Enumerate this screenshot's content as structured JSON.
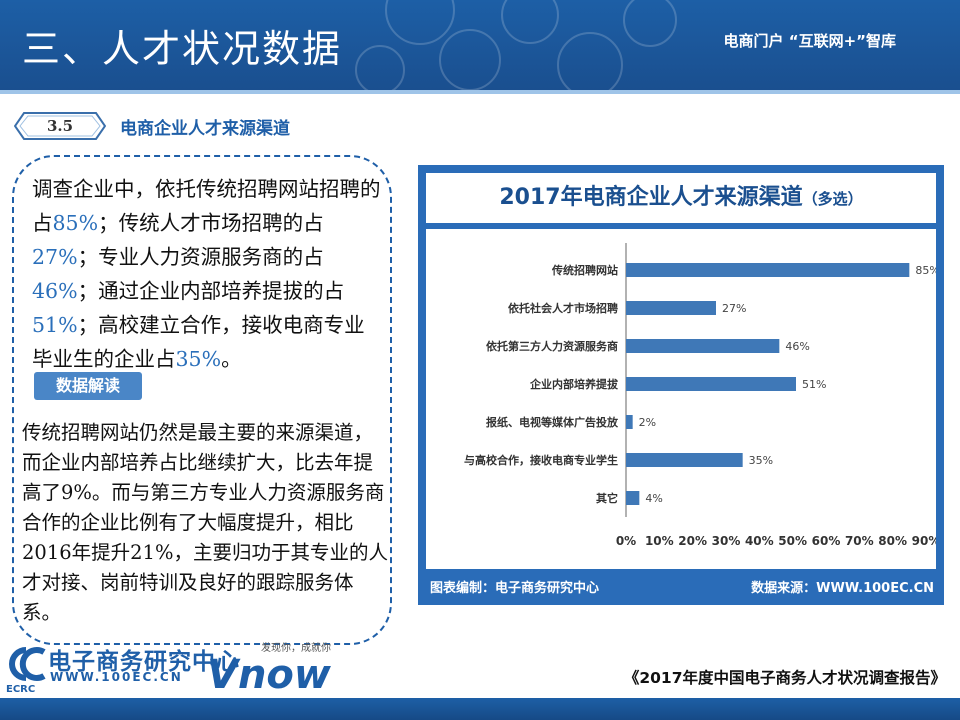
{
  "header": {
    "title": "三、人才状况数据",
    "slogan": "电商门户 “互联网+”智库"
  },
  "section": {
    "number": "3.5",
    "title": "电商企业人才来源渠道"
  },
  "summary": {
    "seg1": "调查企业中，依托传统招聘网站招聘的占",
    "v1": "85%",
    "seg2": "；传统人才市场招聘的占",
    "v2": "27%",
    "seg3": "；专业人力资源服务商的占",
    "v3": "46%",
    "seg4": "；通过企业内部培养提拔的占",
    "v4": "51%",
    "seg5": "；高校建立合作，接收电商专业毕业生的企业占",
    "v5": "35%",
    "seg6": "。"
  },
  "interpretation": {
    "badge": "数据解读",
    "text": "传统招聘网站仍然是最主要的来源渠道，而企业内部培养占比继续扩大，比去年提高了9%。而与第三方专业人力资源服务商合作的企业比例有了大幅度提升，相比2016年提升21%，主要归功于其专业的人才对接、岗前特训及良好的跟踪服务体系。"
  },
  "chart_data": {
    "type": "bar",
    "orientation": "horizontal",
    "title": "2017年电商企业人才来源渠道",
    "subtitle": "（多选）",
    "categories": [
      "传统招聘网站",
      "依托社会人才市场招聘",
      "依托第三方人力资源服务商",
      "企业内部培养提拔",
      "报纸、电视等媒体广告投放",
      "与高校合作，接收电商专业学生",
      "其它"
    ],
    "values": [
      85,
      27,
      46,
      51,
      2,
      35,
      4
    ],
    "value_labels": [
      "85%",
      "27%",
      "46%",
      "51%",
      "2%",
      "35%",
      "4%"
    ],
    "xlim": [
      0,
      90
    ],
    "x_ticks": [
      "0%",
      "10%",
      "20%",
      "30%",
      "40%",
      "50%",
      "60%",
      "70%",
      "80%",
      "90%"
    ],
    "grid": false,
    "bar_color": "#3f78b7",
    "footer_left": "图表编制：电子商务研究中心",
    "footer_right": "数据来源：WWW.100EC.CN"
  },
  "footer": {
    "logo_name": "电子商务研究中心",
    "logo_url": "WWW.100EC.CN",
    "logo_abbr": "ECRC",
    "vnow_tagline": "发现你，成就你",
    "vnow_text": "Vnow",
    "report": "《2017年度中国电子商务人才状况调查报告》"
  },
  "colors": {
    "header_blue": "#1d5fa6",
    "accent_blue": "#2a6fba",
    "panel_blue": "#2a6cb8"
  }
}
